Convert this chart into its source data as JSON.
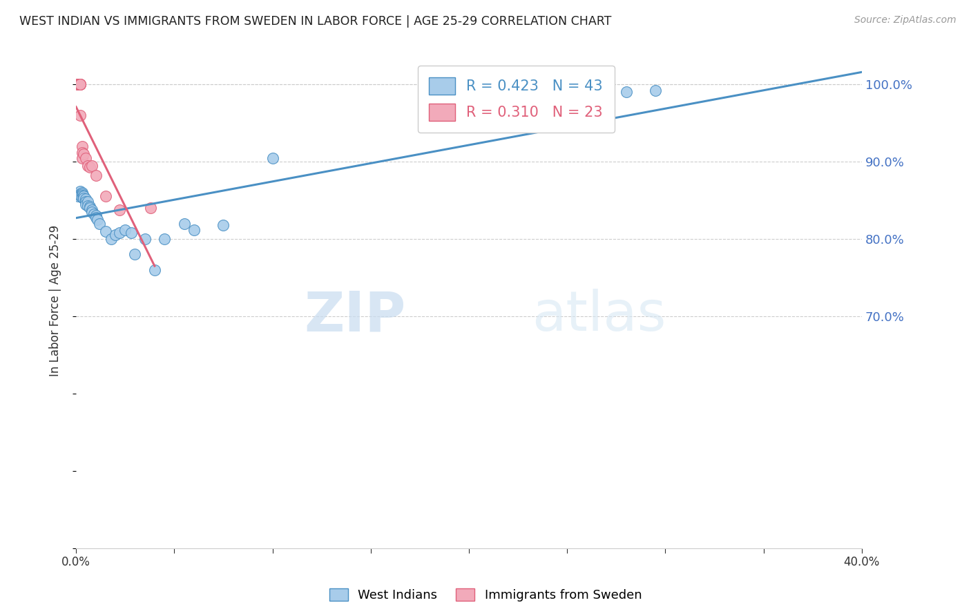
{
  "title": "WEST INDIAN VS IMMIGRANTS FROM SWEDEN IN LABOR FORCE | AGE 25-29 CORRELATION CHART",
  "source": "Source: ZipAtlas.com",
  "ylabel": "In Labor Force | Age 25-29",
  "blue_label": "West Indians",
  "pink_label": "Immigrants from Sweden",
  "blue_R": 0.423,
  "blue_N": 43,
  "pink_R": 0.31,
  "pink_N": 23,
  "xlim": [
    0.0,
    0.4
  ],
  "ylim": [
    0.4,
    1.04
  ],
  "right_yticks": [
    0.7,
    0.8,
    0.9,
    1.0
  ],
  "xtick_labels_show": [
    0.0,
    0.4
  ],
  "blue_color": "#A8CCEA",
  "pink_color": "#F2AABA",
  "blue_line_color": "#4A90C4",
  "pink_line_color": "#E0607A",
  "blue_x": [
    0.001,
    0.001,
    0.002,
    0.002,
    0.002,
    0.003,
    0.003,
    0.003,
    0.003,
    0.004,
    0.004,
    0.004,
    0.005,
    0.005,
    0.005,
    0.005,
    0.006,
    0.006,
    0.007,
    0.007,
    0.008,
    0.008,
    0.009,
    0.01,
    0.01,
    0.011,
    0.012,
    0.015,
    0.018,
    0.02,
    0.022,
    0.025,
    0.028,
    0.03,
    0.035,
    0.04,
    0.045,
    0.055,
    0.06,
    0.075,
    0.1,
    0.28,
    0.295
  ],
  "blue_y": [
    0.858,
    0.855,
    0.862,
    0.858,
    0.856,
    0.86,
    0.858,
    0.856,
    0.854,
    0.855,
    0.855,
    0.853,
    0.85,
    0.852,
    0.848,
    0.845,
    0.848,
    0.843,
    0.842,
    0.84,
    0.838,
    0.835,
    0.832,
    0.83,
    0.828,
    0.825,
    0.82,
    0.81,
    0.8,
    0.805,
    0.808,
    0.812,
    0.808,
    0.78,
    0.8,
    0.76,
    0.8,
    0.82,
    0.812,
    0.818,
    0.905,
    0.99,
    0.992
  ],
  "pink_x": [
    0.001,
    0.001,
    0.001,
    0.001,
    0.001,
    0.001,
    0.002,
    0.002,
    0.002,
    0.002,
    0.002,
    0.003,
    0.003,
    0.003,
    0.004,
    0.005,
    0.006,
    0.007,
    0.008,
    0.01,
    0.015,
    0.022,
    0.038
  ],
  "pink_y": [
    1.0,
    1.0,
    1.0,
    1.0,
    1.0,
    1.0,
    1.0,
    1.0,
    1.0,
    1.0,
    0.96,
    0.92,
    0.912,
    0.905,
    0.91,
    0.905,
    0.895,
    0.893,
    0.895,
    0.882,
    0.855,
    0.838,
    0.84
  ],
  "watermark_zip": "ZIP",
  "watermark_atlas": "atlas",
  "background_color": "#FFFFFF",
  "grid_color": "#CCCCCC"
}
